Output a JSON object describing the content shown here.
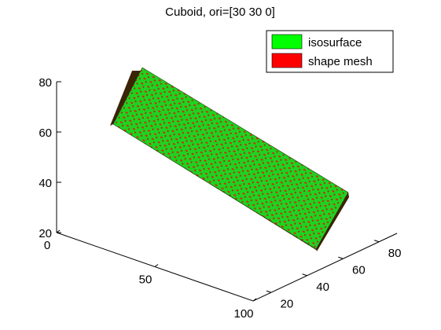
{
  "chart_data": {
    "type": "3d-surface",
    "title": "Cuboid, ori=[30 30 0]",
    "axes": {
      "x": {
        "ticks": [
          0,
          50,
          100
        ],
        "range": [
          0,
          100
        ]
      },
      "y": {
        "ticks": [
          20,
          40,
          60,
          80
        ],
        "range": [
          10,
          90
        ]
      },
      "z": {
        "ticks": [
          20,
          40,
          60,
          80
        ],
        "range": [
          20,
          80
        ]
      }
    },
    "legend": {
      "placement": "top-right",
      "entries": [
        {
          "label": "isosurface",
          "color": "#00ff00"
        },
        {
          "label": "shape mesh",
          "color": "#ff0000"
        }
      ]
    },
    "series": [
      {
        "name": "isosurface",
        "color": "#00ff00"
      },
      {
        "name": "shape mesh",
        "color": "#ff0000"
      }
    ],
    "grid": false
  }
}
